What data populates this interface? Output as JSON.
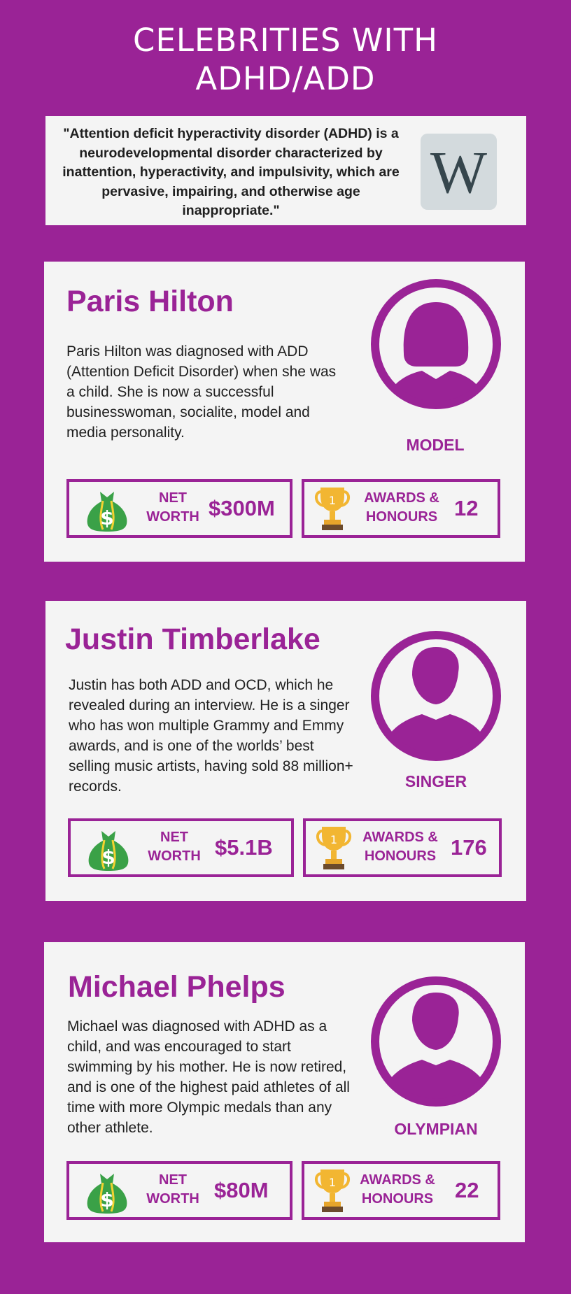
{
  "title_line1": "CELEBRITIES WITH",
  "title_line2": "ADHD/ADD",
  "quote": "\"Attention deficit hyperactivity disorder (ADHD) is a neurodevelopmental disorder characterized by inattention, hyperactivity, and impulsivity, which are pervasive, impairing, and otherwise age inappropriate.\"",
  "wiki_letter": "W",
  "colors": {
    "background": "#9a2396",
    "accent": "#9a2396",
    "card": "#f4f4f4",
    "money_bag": "#3aa147",
    "trophy": "#f2b632"
  },
  "stat_labels": {
    "net_worth_1": "NET",
    "net_worth_2": "WORTH",
    "awards_1": "AWARDS &",
    "awards_2": "HONOURS"
  },
  "icons": [
    "wikipedia-logo",
    "female-avatar-icon",
    "male-avatar-icon",
    "money-bag-icon",
    "trophy-icon"
  ],
  "celebrities": [
    {
      "name": "Paris Hilton",
      "description": "Paris Hilton was diagnosed with ADD (Attention Deficit Disorder) when she was a child. She is now a successful businesswoman, socialite, model and media personality.",
      "role": "MODEL",
      "net_worth": "$300M",
      "awards": "12"
    },
    {
      "name": "Justin Timberlake",
      "description": "Justin has both ADD and OCD, which he revealed during an interview. He is a singer who has won multiple Grammy and Emmy awards, and is one of the worlds’ best selling music artists, having sold 88 million+ records.",
      "role": "SINGER",
      "net_worth": "$5.1B",
      "awards": "176"
    },
    {
      "name": "Michael Phelps",
      "description": "Michael was diagnosed with ADHD as a child, and was encouraged to start swimming by his mother. He is now retired, and is one of the highest paid athletes of all time with more Olympic medals than any other athlete.",
      "role": "OLYMPIAN",
      "net_worth": "$80M",
      "awards": "22"
    }
  ]
}
